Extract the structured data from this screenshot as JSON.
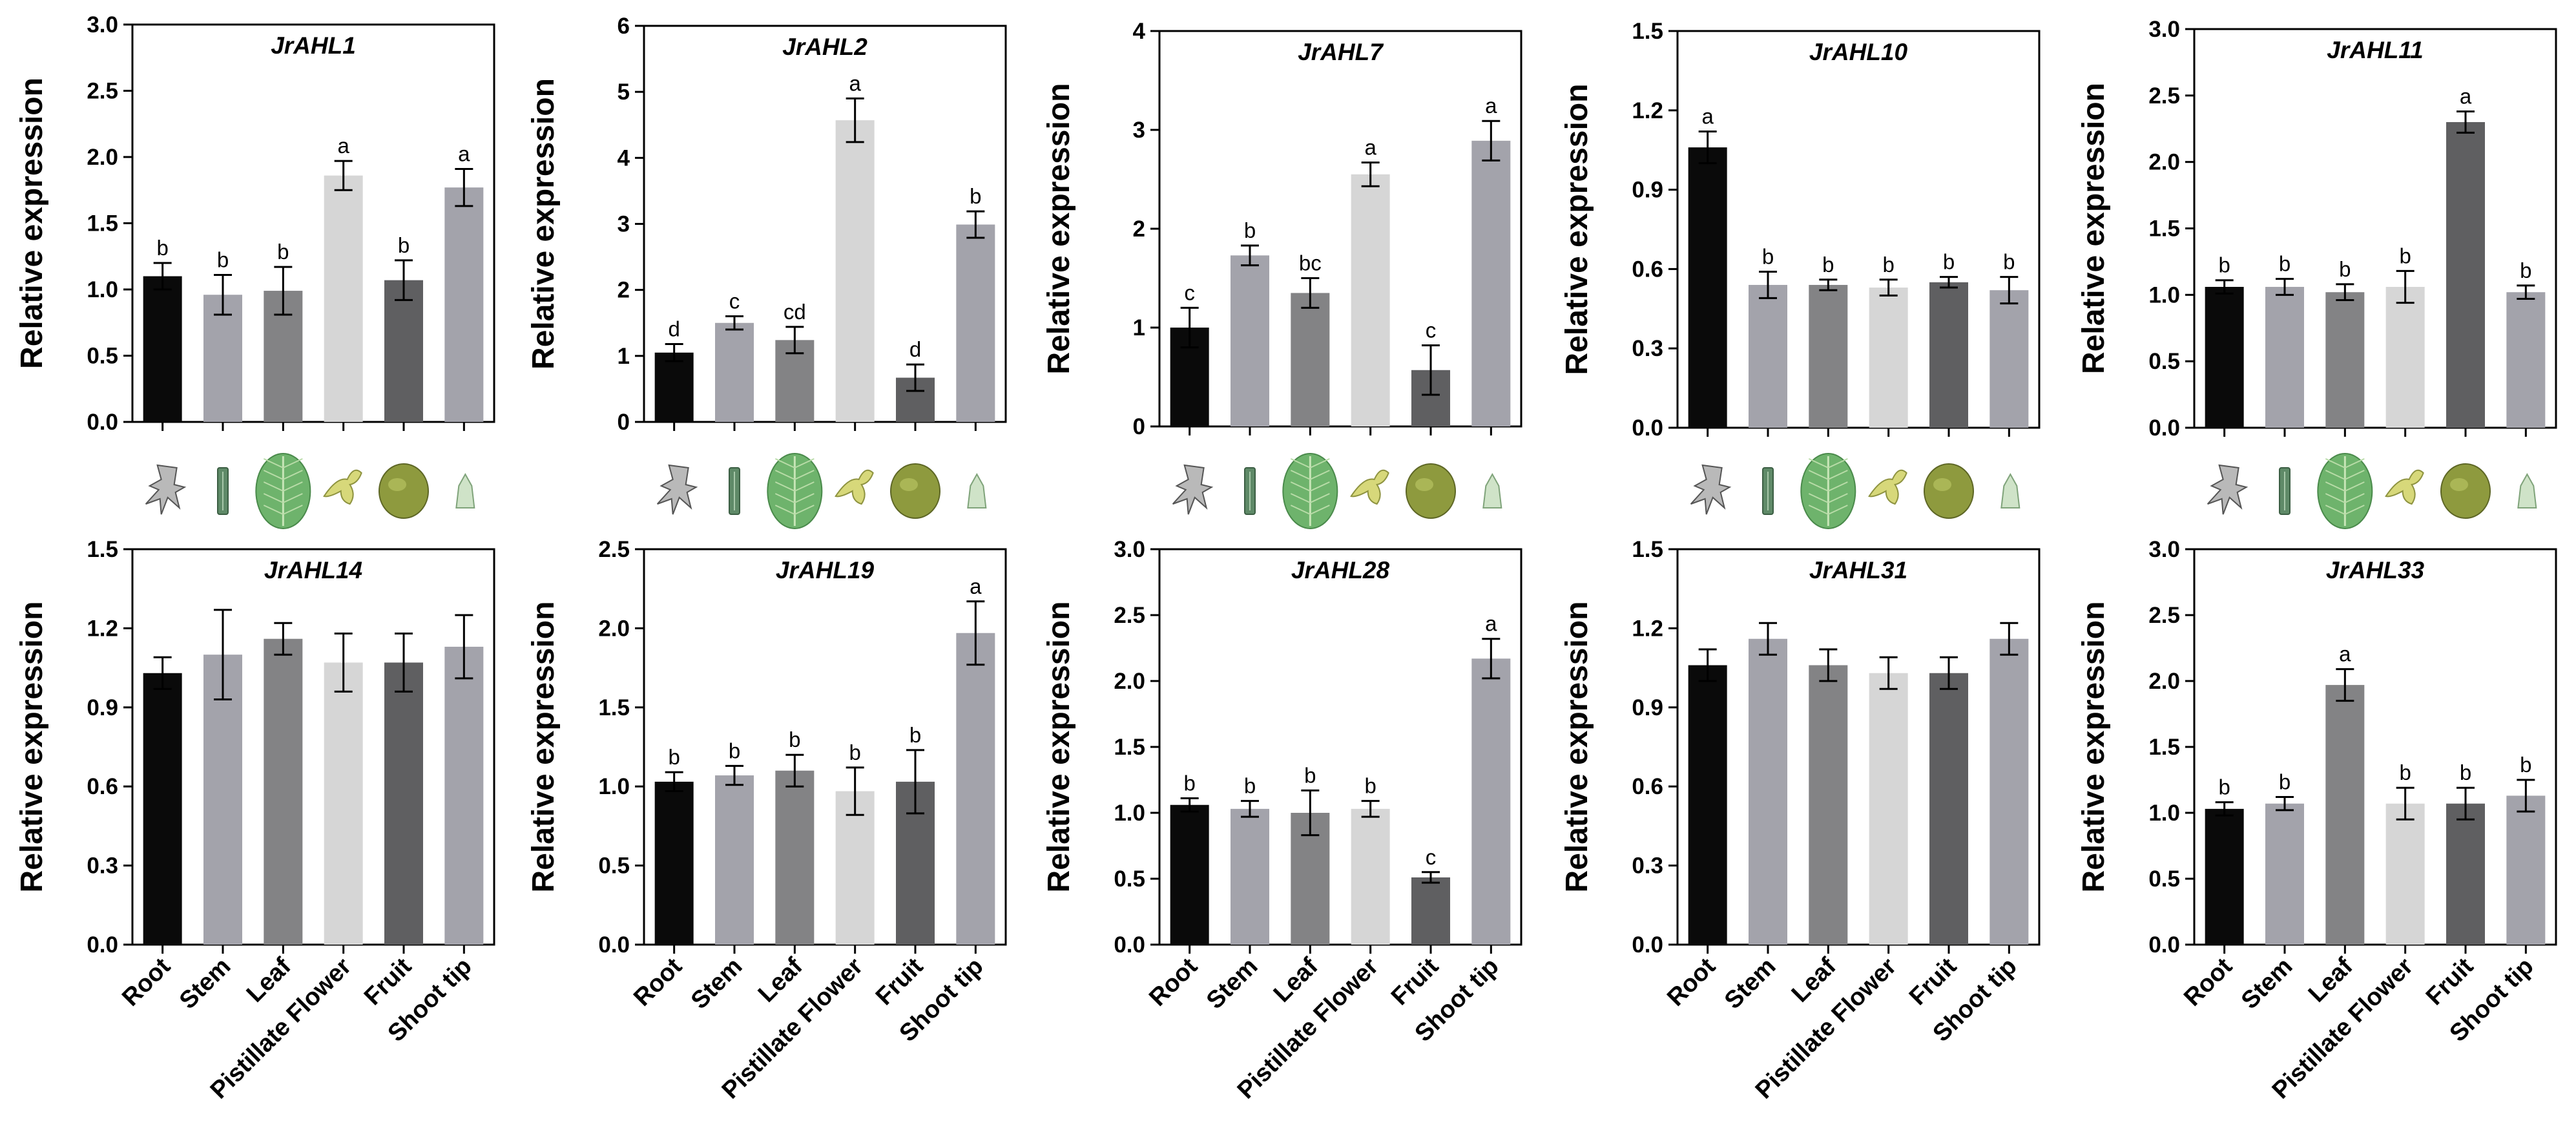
{
  "colors": {
    "Root": "#0a0a0a",
    "Stem": "#a3a3ab",
    "Leaf": "#838385",
    "Pistillate Flower": "#d6d6d6",
    "Fruit": "#5f5f61",
    "Shoot tip": "#a3a3ab"
  },
  "tissue_icons": [
    "root-icon",
    "stem-icon",
    "leaf-icon",
    "flower-icon",
    "fruit-icon",
    "shoot-tip-icon"
  ],
  "chart_data": [
    {
      "type": "bar",
      "title": "JrAHL1",
      "ylabel": "Relative expression",
      "ylim": [
        0,
        3.0
      ],
      "yticks": [
        "0.0",
        "0.5",
        "1.0",
        "1.5",
        "2.0",
        "2.5",
        "3.0"
      ],
      "categories": [
        "Root",
        "Stem",
        "Leaf",
        "Pistillate Flower",
        "Fruit",
        "Shoot tip"
      ],
      "values": [
        1.1,
        0.96,
        0.99,
        1.86,
        1.07,
        1.77
      ],
      "errors": [
        0.1,
        0.15,
        0.18,
        0.11,
        0.15,
        0.14
      ],
      "letters": [
        "b",
        "b",
        "b",
        "a",
        "b",
        "a"
      ]
    },
    {
      "type": "bar",
      "title": "JrAHL2",
      "ylabel": "Relative expression",
      "ylim": [
        0,
        6
      ],
      "yticks": [
        "0",
        "1",
        "2",
        "3",
        "4",
        "5",
        "6"
      ],
      "categories": [
        "Root",
        "Stem",
        "Leaf",
        "Pistillate Flower",
        "Fruit",
        "Shoot tip"
      ],
      "values": [
        1.05,
        1.5,
        1.24,
        4.57,
        0.67,
        2.99
      ],
      "errors": [
        0.13,
        0.1,
        0.2,
        0.33,
        0.2,
        0.2
      ],
      "letters": [
        "d",
        "c",
        "cd",
        "a",
        "d",
        "b"
      ]
    },
    {
      "type": "bar",
      "title": "JrAHL7",
      "ylabel": "Relative expression",
      "ylim": [
        0,
        4
      ],
      "yticks": [
        "0",
        "1",
        "2",
        "3",
        "4"
      ],
      "categories": [
        "Root",
        "Stem",
        "Leaf",
        "Pistillate Flower",
        "Fruit",
        "Shoot tip"
      ],
      "values": [
        1.0,
        1.73,
        1.35,
        2.55,
        0.57,
        2.89
      ],
      "errors": [
        0.2,
        0.1,
        0.15,
        0.12,
        0.25,
        0.2
      ],
      "letters": [
        "c",
        "b",
        "bc",
        "a",
        "c",
        "a"
      ]
    },
    {
      "type": "bar",
      "title": "JrAHL10",
      "ylabel": "Relative expression",
      "ylim": [
        0,
        1.5
      ],
      "yticks": [
        "0.0",
        "0.3",
        "0.6",
        "0.9",
        "1.2",
        "1.5"
      ],
      "categories": [
        "Root",
        "Stem",
        "Leaf",
        "Pistillate Flower",
        "Fruit",
        "Shoot tip"
      ],
      "values": [
        1.06,
        0.54,
        0.54,
        0.53,
        0.55,
        0.52
      ],
      "errors": [
        0.06,
        0.05,
        0.02,
        0.03,
        0.02,
        0.05
      ],
      "letters": [
        "a",
        "b",
        "b",
        "b",
        "b",
        "b"
      ]
    },
    {
      "type": "bar",
      "title": "JrAHL11",
      "ylabel": "Relative expression",
      "ylim": [
        0,
        3.0
      ],
      "yticks": [
        "0.0",
        "0.5",
        "1.0",
        "1.5",
        "2.0",
        "2.5",
        "3.0"
      ],
      "categories": [
        "Root",
        "Stem",
        "Leaf",
        "Pistillate Flower",
        "Fruit",
        "Shoot tip"
      ],
      "values": [
        1.06,
        1.06,
        1.02,
        1.06,
        2.3,
        1.02
      ],
      "errors": [
        0.05,
        0.06,
        0.06,
        0.12,
        0.08,
        0.05
      ],
      "letters": [
        "b",
        "b",
        "b",
        "b",
        "a",
        "b"
      ]
    },
    {
      "type": "bar",
      "title": "JrAHL14",
      "ylabel": "Relative expression",
      "ylim": [
        0,
        1.5
      ],
      "yticks": [
        "0.0",
        "0.3",
        "0.6",
        "0.9",
        "1.2",
        "1.5"
      ],
      "categories": [
        "Root",
        "Stem",
        "Leaf",
        "Pistillate Flower",
        "Fruit",
        "Shoot tip"
      ],
      "values": [
        1.03,
        1.1,
        1.16,
        1.07,
        1.07,
        1.13
      ],
      "errors": [
        0.06,
        0.17,
        0.06,
        0.11,
        0.11,
        0.12
      ],
      "letters": [
        "",
        "",
        "",
        "",
        "",
        ""
      ]
    },
    {
      "type": "bar",
      "title": "JrAHL19",
      "ylabel": "Relative expression",
      "ylim": [
        0,
        2.5
      ],
      "yticks": [
        "0.0",
        "0.5",
        "1.0",
        "1.5",
        "2.0",
        "2.5"
      ],
      "categories": [
        "Root",
        "Stem",
        "Leaf",
        "Pistillate Flower",
        "Fruit",
        "Shoot tip"
      ],
      "values": [
        1.03,
        1.07,
        1.1,
        0.97,
        1.03,
        1.97
      ],
      "errors": [
        0.06,
        0.06,
        0.1,
        0.15,
        0.2,
        0.2
      ],
      "letters": [
        "b",
        "b",
        "b",
        "b",
        "b",
        "a"
      ]
    },
    {
      "type": "bar",
      "title": "JrAHL28",
      "ylabel": "Relative expression",
      "ylim": [
        0,
        3.0
      ],
      "yticks": [
        "0.0",
        "0.5",
        "1.0",
        "1.5",
        "2.0",
        "2.5",
        "3.0"
      ],
      "categories": [
        "Root",
        "Stem",
        "Leaf",
        "Pistillate Flower",
        "Fruit",
        "Shoot tip"
      ],
      "values": [
        1.06,
        1.03,
        1.0,
        1.03,
        0.51,
        2.17
      ],
      "errors": [
        0.05,
        0.06,
        0.17,
        0.06,
        0.04,
        0.15
      ],
      "letters": [
        "b",
        "b",
        "b",
        "b",
        "c",
        "a"
      ]
    },
    {
      "type": "bar",
      "title": "JrAHL31",
      "ylabel": "Relative expression",
      "ylim": [
        0,
        1.5
      ],
      "yticks": [
        "0.0",
        "0.3",
        "0.6",
        "0.9",
        "1.2",
        "1.5"
      ],
      "categories": [
        "Root",
        "Stem",
        "Leaf",
        "Pistillate Flower",
        "Fruit",
        "Shoot tip"
      ],
      "values": [
        1.06,
        1.16,
        1.06,
        1.03,
        1.03,
        1.16
      ],
      "errors": [
        0.06,
        0.06,
        0.06,
        0.06,
        0.06,
        0.06
      ],
      "letters": [
        "",
        "",
        "",
        "",
        "",
        ""
      ]
    },
    {
      "type": "bar",
      "title": "JrAHL33",
      "ylabel": "Relative expression",
      "ylim": [
        0,
        3.0
      ],
      "yticks": [
        "0.0",
        "0.5",
        "1.0",
        "1.5",
        "2.0",
        "2.5",
        "3.0"
      ],
      "categories": [
        "Root",
        "Stem",
        "Leaf",
        "Pistillate Flower",
        "Fruit",
        "Shoot tip"
      ],
      "values": [
        1.03,
        1.07,
        1.97,
        1.07,
        1.07,
        1.13
      ],
      "errors": [
        0.05,
        0.05,
        0.12,
        0.12,
        0.12,
        0.12
      ],
      "letters": [
        "b",
        "b",
        "a",
        "b",
        "b",
        "b"
      ]
    }
  ]
}
